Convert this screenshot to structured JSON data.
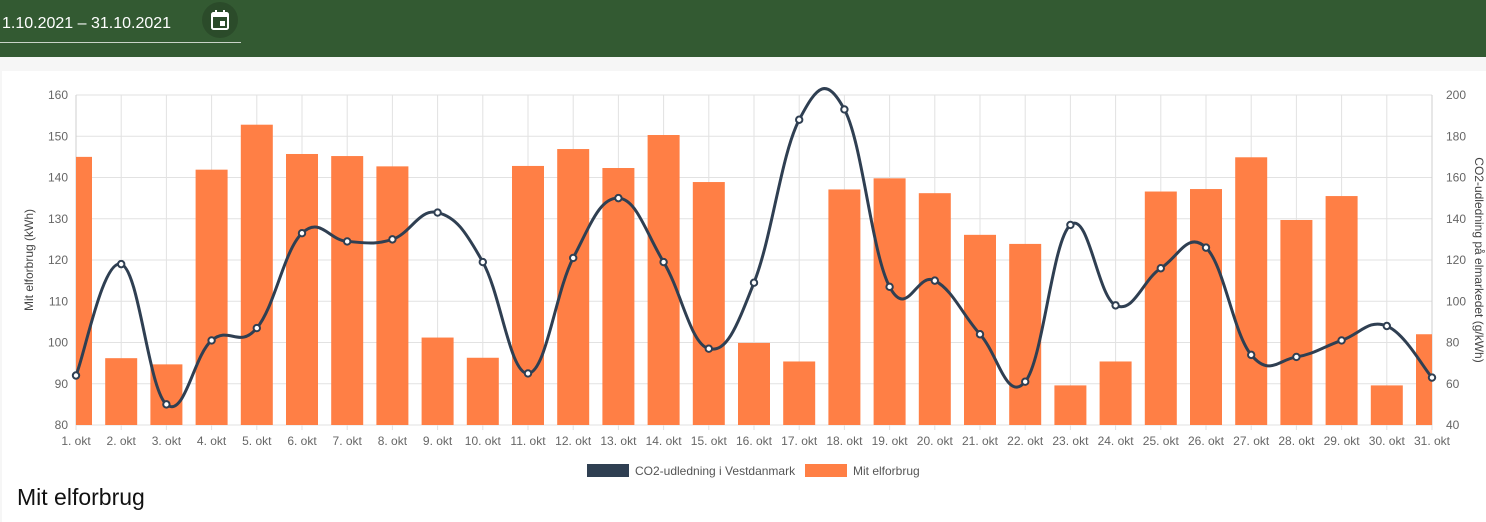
{
  "header": {
    "date_range": "1.10.2021 – 31.10.2021",
    "calendar_icon": "calendar-icon"
  },
  "colors": {
    "header_bg": "#335a32",
    "bar": "#ff7f45",
    "line": "#2f3f52"
  },
  "section_title": "Mit elforbrug",
  "chart_data": {
    "type": "bar",
    "categories": [
      "1. okt",
      "2. okt",
      "3. okt",
      "4. okt",
      "5. okt",
      "6. okt",
      "7. okt",
      "8. okt",
      "9. okt",
      "10. okt",
      "11. okt",
      "12. okt",
      "13. okt",
      "14. okt",
      "15. okt",
      "16. okt",
      "17. okt",
      "18. okt",
      "19. okt",
      "20. okt",
      "21. okt",
      "22. okt",
      "23. okt",
      "24. okt",
      "25. okt",
      "26. okt",
      "27. okt",
      "28. okt",
      "29. okt",
      "30. okt",
      "31. okt"
    ],
    "series": [
      {
        "name": "CO2-udledning i Vestdanmark",
        "type": "line",
        "axis": "right",
        "values": [
          64,
          118,
          50,
          81,
          87,
          133,
          129,
          130,
          143,
          119,
          65,
          121,
          150,
          119,
          77,
          109,
          188,
          193,
          107,
          110,
          84,
          61,
          137,
          98,
          116,
          126,
          74,
          73,
          81,
          88,
          63
        ]
      },
      {
        "name": "Mit elforbrug",
        "type": "bar",
        "axis": "left",
        "values": [
          145,
          96.2,
          94.7,
          141.9,
          152.8,
          145.7,
          145.2,
          142.7,
          101.2,
          96.3,
          142.8,
          146.9,
          142.3,
          150.3,
          138.9,
          99.9,
          95.4,
          137.1,
          139.8,
          136.2,
          126.1,
          123.9,
          89.6,
          95.4,
          136.6,
          137.2,
          144.9,
          129.7,
          135.5,
          89.6,
          102
        ]
      }
    ],
    "y_left": {
      "label": "Mit elforbrug (kWh)",
      "min": 80,
      "max": 160,
      "ticks": [
        "80",
        "90",
        "100",
        "110",
        "120",
        "130",
        "140",
        "150",
        "160"
      ]
    },
    "y_right": {
      "label": "CO2-udledning på elmarkedet (g/kWh)",
      "min": 40,
      "max": 200,
      "ticks": [
        "40",
        "60",
        "80",
        "100",
        "120",
        "140",
        "160",
        "180",
        "200"
      ]
    },
    "grid": true,
    "legend_position": "bottom"
  }
}
